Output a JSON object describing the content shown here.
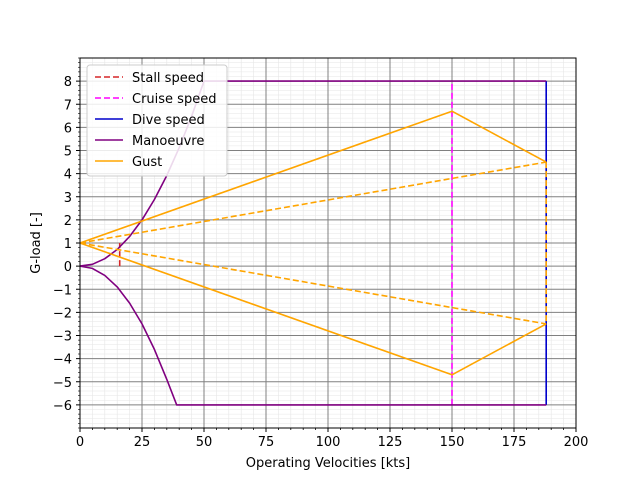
{
  "chart_data": {
    "type": "line",
    "title": "",
    "xlabel": "Operating Velocities [kts]",
    "ylabel": "G-load [-]",
    "xlim": [
      0,
      200
    ],
    "ylim": [
      -7,
      9
    ],
    "xticks": [
      0,
      25,
      50,
      75,
      100,
      125,
      150,
      175,
      200
    ],
    "yticks": [
      -6,
      -5,
      -4,
      -3,
      -2,
      -1,
      0,
      1,
      2,
      3,
      4,
      5,
      6,
      7,
      8
    ],
    "grid": true,
    "minor_grid": true,
    "legend_placement": "upper-left",
    "series": [
      {
        "name": "Stall speed",
        "color": "#d62728",
        "style": "dashed",
        "points": [
          [
            16,
            0
          ],
          [
            16,
            1
          ]
        ]
      },
      {
        "name": "Cruise speed",
        "color": "#ff00ff",
        "style": "dashed",
        "points": [
          [
            150,
            -6
          ],
          [
            150,
            8
          ]
        ]
      },
      {
        "name": "Dive speed",
        "color": "#0000cc",
        "style": "solid",
        "points": [
          [
            188,
            8
          ],
          [
            188,
            -6
          ]
        ]
      },
      {
        "name": "Manoeuvre",
        "color": "#800080",
        "style": "solid",
        "segments": [
          [
            [
              0,
              0
            ],
            [
              5,
              0.08
            ],
            [
              10,
              0.32
            ],
            [
              15,
              0.72
            ],
            [
              20,
              1.28
            ],
            [
              25,
              2.0
            ],
            [
              30,
              2.88
            ],
            [
              35,
              3.92
            ],
            [
              40,
              5.12
            ],
            [
              45,
              6.48
            ],
            [
              50,
              8.0
            ],
            [
              188,
              8.0
            ]
          ],
          [
            [
              0,
              0
            ],
            [
              5,
              -0.1
            ],
            [
              10,
              -0.4
            ],
            [
              15,
              -0.9
            ],
            [
              20,
              -1.6
            ],
            [
              25,
              -2.5
            ],
            [
              30,
              -3.6
            ],
            [
              35,
              -4.9
            ],
            [
              39,
              -6.0
            ],
            [
              188,
              -6.0
            ]
          ]
        ]
      },
      {
        "name": "Gust",
        "color": "#ffa500",
        "style": "solid",
        "segments": [
          [
            [
              0,
              1
            ],
            [
              150,
              6.7
            ],
            [
              188,
              4.5
            ]
          ],
          [
            [
              0,
              1
            ],
            [
              150,
              -4.7
            ],
            [
              188,
              -2.5
            ]
          ],
          [
            [
              0,
              1
            ],
            [
              188,
              4.5
            ]
          ],
          [
            [
              0,
              1
            ],
            [
              188,
              -2.5
            ]
          ],
          [
            [
              188,
              4.5
            ],
            [
              188,
              -2.5
            ]
          ]
        ],
        "dashed_segments": [
          2,
          3,
          4
        ]
      }
    ]
  }
}
